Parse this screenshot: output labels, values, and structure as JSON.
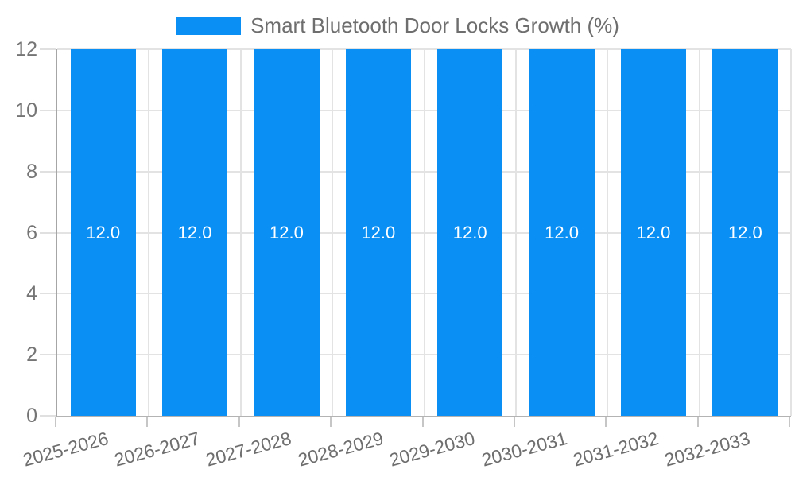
{
  "legend": {
    "label": "Smart Bluetooth Door Locks Growth (%)"
  },
  "chart_data": {
    "type": "bar",
    "title": "Smart Bluetooth Door Locks Growth (%)",
    "categories": [
      "2025-2026",
      "2026-2027",
      "2027-2028",
      "2028-2029",
      "2029-2030",
      "2030-2031",
      "2031-2032",
      "2032-2033"
    ],
    "values": [
      12.0,
      12.0,
      12.0,
      12.0,
      12.0,
      12.0,
      12.0,
      12.0
    ],
    "value_labels": [
      "12.0",
      "12.0",
      "12.0",
      "12.0",
      "12.0",
      "12.0",
      "12.0",
      "12.0"
    ],
    "xlabel": "",
    "ylabel": "",
    "ylim": [
      0,
      12
    ],
    "yticks": [
      0,
      2,
      4,
      6,
      8,
      10,
      12
    ],
    "grid": true,
    "legend_position": "top-center",
    "colors": {
      "bar": "#0a90f5",
      "value_label": "#ffffff",
      "axis_text": "#757575",
      "gridline": "#e3e3e3",
      "background": "#ffffff"
    }
  }
}
